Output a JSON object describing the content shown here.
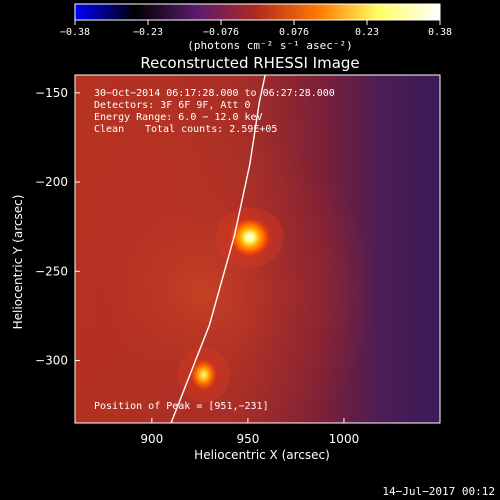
{
  "colorbar": {
    "ticks": [
      "−0.38",
      "−0.23",
      "−0.076",
      "0.076",
      "0.23",
      "0.38"
    ],
    "unit_text": "(photons cm⁻² s⁻¹ asec⁻²)",
    "range": [
      -0.38,
      0.38
    ],
    "colors": [
      "#0000ff",
      "#000000",
      "#5a1a6e",
      "#b32a20",
      "#ff7a00",
      "#ffff66",
      "#ffffff"
    ]
  },
  "title": "Reconstructed RHESSI Image",
  "info": {
    "line1": "30−Oct−2014 06:17:28.000 to 06:27:28.000",
    "line2": "Detectors: 3F 6F 9F, Att 0",
    "line3": "Energy Range: 6.0 − 12.0 keV",
    "line4_left": "Clean",
    "line4_right": "Total counts: 2.59E+05"
  },
  "peak_note": "Position of Peak = [951,−231]",
  "timestamp": "14−Jul−2017 00:12",
  "chart_data": {
    "type": "heatmap",
    "title": "Reconstructed RHESSI Image",
    "xlabel": "Heliocentric X (arcsec)",
    "ylabel": "Heliocentric Y (arcsec)",
    "xlim": [
      860,
      1050
    ],
    "ylim": [
      -335,
      -140
    ],
    "x_ticks": [
      {
        "value": 900,
        "label": "900"
      },
      {
        "value": 950,
        "label": "950"
      },
      {
        "value": 1000,
        "label": "1000"
      }
    ],
    "y_ticks": [
      {
        "value": -150,
        "label": "−150"
      },
      {
        "value": -200,
        "label": "−200"
      },
      {
        "value": -250,
        "label": "−250"
      },
      {
        "value": -300,
        "label": "−300"
      }
    ],
    "sources": [
      {
        "x": 951,
        "y": -231,
        "peak": 0.38
      },
      {
        "x": 927,
        "y": -308,
        "peak": 0.33
      }
    ],
    "limb_curve": [
      [
        910,
        -335
      ],
      [
        930,
        -280
      ],
      [
        943,
        -230
      ],
      [
        951,
        -190
      ],
      [
        956,
        -155
      ],
      [
        959,
        -140
      ]
    ]
  }
}
